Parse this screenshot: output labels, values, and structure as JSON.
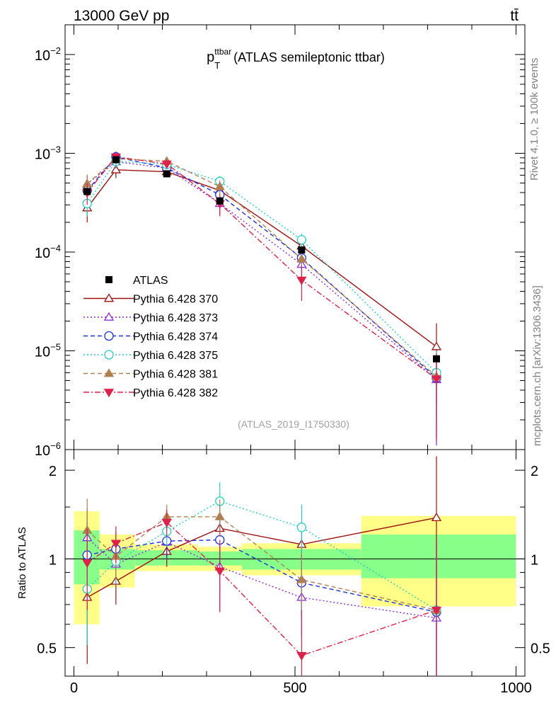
{
  "header": {
    "left": "13000 GeV pp",
    "right": "tt̄"
  },
  "side_labels": {
    "rivet": "Rivet 4.1.0, ≥ 100k events",
    "mcplots": "mcplots.cern.ch [arXiv:1306.3436]"
  },
  "chart_data": [
    {
      "type": "scatter",
      "panel": "main",
      "title_main": "p",
      "title_sup": "ttbar",
      "title_sub": "T",
      "title_rest": " (ATLAS semileptonic ttbar)",
      "analysis_label": "(ATLAS_2019_I1750330)",
      "yscale": "log",
      "ylim": [
        1e-06,
        0.02
      ],
      "xlim": [
        -20,
        1020
      ],
      "y_tick_labels": [
        {
          "base": "10",
          "exp": "−2",
          "value": 0.01
        },
        {
          "base": "10",
          "exp": "−3",
          "value": 0.001
        },
        {
          "base": "10",
          "exp": "−4",
          "value": 0.0001
        },
        {
          "base": "10",
          "exp": "−5",
          "value": 1e-05
        },
        {
          "base": "10",
          "exp": "−6",
          "value": 1e-06
        }
      ],
      "legend": [
        "ATLAS",
        "Pythia 6.428 370",
        "Pythia 6.428 373",
        "Pythia 6.428 374",
        "Pythia 6.428 375",
        "Pythia 6.428 381",
        "Pythia 6.428 382"
      ],
      "data": {
        "name": "ATLAS",
        "x": [
          30,
          95,
          210,
          330,
          515,
          820
        ],
        "values": [
          0.00041,
          0.00086,
          0.00062,
          0.00033,
          0.000105,
          8.3e-06
        ]
      },
      "series": [
        {
          "name": "Pythia 6.428 370",
          "color": "#a01010",
          "dash": "",
          "marker": "triangle-up-open",
          "values": [
            0.00028,
            0.00068,
            0.00065,
            0.00042,
            0.000115,
            1.1e-05
          ],
          "errors": [
            8e-05,
            0.00012,
            6e-05,
            5e-05,
            1.2e-05,
            8e-06
          ]
        },
        {
          "name": "Pythia 6.428 373",
          "color": "#8a2be2",
          "dash": "2,3",
          "marker": "triangle-up-open",
          "values": [
            0.00049,
            0.00082,
            0.00071,
            0.00031,
            7.5e-05,
            5.1e-06
          ],
          "errors": [
            0.0001,
            0.00012,
            7e-05,
            7e-05,
            2e-05,
            4e-06
          ]
        },
        {
          "name": "Pythia 6.428 374",
          "color": "#1a2ee6",
          "dash": "6,4",
          "marker": "circle-open",
          "values": [
            0.00042,
            0.00092,
            0.00071,
            0.00038,
            8.7e-05,
            5.3e-06
          ],
          "errors": [
            0.0001,
            0.00012,
            7e-05,
            6e-05,
            1.8e-05,
            4e-06
          ]
        },
        {
          "name": "Pythia 6.428 375",
          "color": "#20d0c0",
          "dash": "2,3",
          "marker": "circle-open",
          "values": [
            0.00031,
            0.00083,
            0.00077,
            0.00052,
            0.000133,
            6e-06
          ],
          "errors": [
            8e-05,
            0.00012,
            8e-05,
            7e-05,
            2e-05,
            4e-06
          ]
        },
        {
          "name": "Pythia 6.428 381",
          "color": "#b08050",
          "dash": "6,4",
          "marker": "triangle-up-filled",
          "values": [
            0.00049,
            0.00088,
            0.00083,
            0.00046,
            8.5e-05,
            5.5e-06
          ],
          "errors": [
            0.00012,
            0.00012,
            8e-05,
            7e-05,
            1.8e-05,
            4e-06
          ]
        },
        {
          "name": "Pythia 6.428 382",
          "color": "#e0204a",
          "dash": "8,3,2,3",
          "marker": "triangle-down-filled",
          "values": [
            0.0004,
            0.00092,
            0.00078,
            0.00031,
            5.2e-05,
            5.2e-06
          ],
          "errors": [
            0.0001,
            0.00012,
            8e-05,
            8e-05,
            2e-05,
            4e-06
          ]
        }
      ]
    },
    {
      "type": "scatter",
      "panel": "ratio",
      "ylabel": "Ratio to ATLAS",
      "ylim": [
        0.4,
        2.35
      ],
      "yscale": "log",
      "xlim": [
        -20,
        1020
      ],
      "x_ticks": [
        0,
        500,
        1000
      ],
      "x_tick_labels": [
        "0",
        "500",
        "1000"
      ],
      "y_ticks": [
        0.5,
        1,
        2
      ],
      "y_tick_labels": [
        "0.5",
        "1",
        "2"
      ],
      "bins": [
        [
          0,
          58
        ],
        [
          58,
          138
        ],
        [
          138,
          280
        ],
        [
          280,
          380
        ],
        [
          380,
          650
        ],
        [
          650,
          1000
        ]
      ],
      "band_yellow": [
        [
          0.6,
          1.45
        ],
        [
          0.8,
          1.21
        ],
        [
          0.91,
          1.12
        ],
        [
          0.91,
          1.1
        ],
        [
          0.88,
          1.13
        ],
        [
          0.69,
          1.4
        ]
      ],
      "band_green": [
        [
          0.82,
          1.25
        ],
        [
          0.92,
          1.08
        ],
        [
          0.95,
          1.07
        ],
        [
          0.95,
          1.06
        ],
        [
          0.92,
          1.08
        ],
        [
          0.86,
          1.21
        ]
      ],
      "series": [
        {
          "name": "Pythia 6.428 370",
          "values": [
            0.74,
            0.84,
            1.06,
            1.27,
            1.12,
            1.38
          ],
          "errors": [
            0.3,
            0.14,
            0.12,
            0.18,
            0.12,
            0.85
          ]
        },
        {
          "name": "Pythia 6.428 373",
          "values": [
            1.18,
            0.96,
            1.14,
            0.94,
            0.74,
            0.63
          ],
          "errors": [
            0.3,
            0.16,
            0.14,
            0.28,
            0.2,
            0.5
          ]
        },
        {
          "name": "Pythia 6.428 374",
          "values": [
            1.03,
            1.08,
            1.15,
            1.16,
            0.83,
            0.66
          ],
          "errors": [
            0.3,
            0.16,
            0.14,
            0.2,
            0.2,
            0.5
          ]
        },
        {
          "name": "Pythia 6.428 375",
          "values": [
            0.79,
            0.98,
            1.24,
            1.57,
            1.28,
            0.67
          ],
          "errors": [
            0.28,
            0.16,
            0.14,
            0.25,
            0.25,
            0.5
          ]
        },
        {
          "name": "Pythia 6.428 381",
          "values": [
            1.25,
            1.02,
            1.39,
            1.39,
            0.85,
            0.67
          ],
          "errors": [
            0.35,
            0.16,
            0.14,
            0.2,
            0.2,
            0.5
          ]
        },
        {
          "name": "Pythia 6.428 382",
          "values": [
            0.97,
            1.13,
            1.33,
            0.91,
            0.47,
            0.67
          ],
          "errors": [
            0.3,
            0.16,
            0.14,
            0.25,
            0.2,
            0.5
          ]
        }
      ]
    }
  ]
}
